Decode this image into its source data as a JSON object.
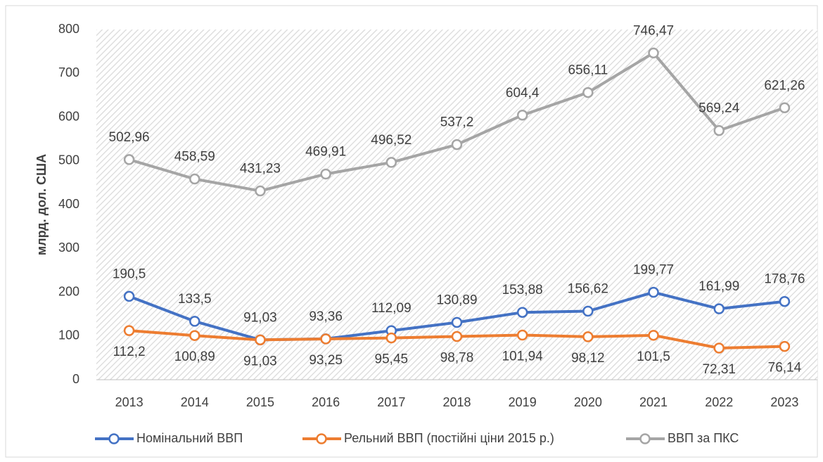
{
  "chart_data": {
    "type": "line",
    "y_label": "млрд. дол. США",
    "categories": [
      "2013",
      "2014",
      "2015",
      "2016",
      "2017",
      "2018",
      "2019",
      "2020",
      "2021",
      "2022",
      "2023"
    ],
    "ylim": [
      0,
      800
    ],
    "yticks": [
      0,
      100,
      200,
      300,
      400,
      500,
      600,
      700,
      800
    ],
    "legend": "bottom",
    "series": [
      {
        "name": "Номінальний ВВП",
        "color": "#4472c4",
        "values": [
          190.5,
          133.5,
          91.03,
          93.36,
          112.09,
          130.89,
          153.88,
          156.62,
          199.77,
          161.99,
          178.76
        ],
        "value_labels": [
          "190,5",
          "133,5",
          "91,03",
          "93,36",
          "112,09",
          "130,89",
          "153,88",
          "156,62",
          "199,77",
          "161,99",
          "178,76"
        ]
      },
      {
        "name": "Рельний ВВП (постійні ціни 2015 р.)",
        "color": "#ed7d31",
        "values": [
          112.2,
          100.89,
          91.03,
          93.25,
          95.45,
          98.78,
          101.94,
          98.12,
          101.5,
          72.31,
          76.14
        ],
        "value_labels": [
          "112,2",
          "100,89",
          "91,03",
          "93,25",
          "95,45",
          "98,78",
          "101,94",
          "98,12",
          "101,5",
          "72,31",
          "76,14"
        ]
      },
      {
        "name": "ВВП за ПКС",
        "color": "#a5a5a5",
        "values": [
          502.96,
          458.59,
          431.23,
          469.91,
          496.52,
          537.2,
          604.4,
          656.11,
          746.47,
          569.24,
          621.26
        ],
        "value_labels": [
          "502,96",
          "458,59",
          "431,23",
          "469,91",
          "496,52",
          "537,2",
          "604,4",
          "656,11",
          "746,47",
          "569,24",
          "621,26"
        ]
      }
    ]
  }
}
